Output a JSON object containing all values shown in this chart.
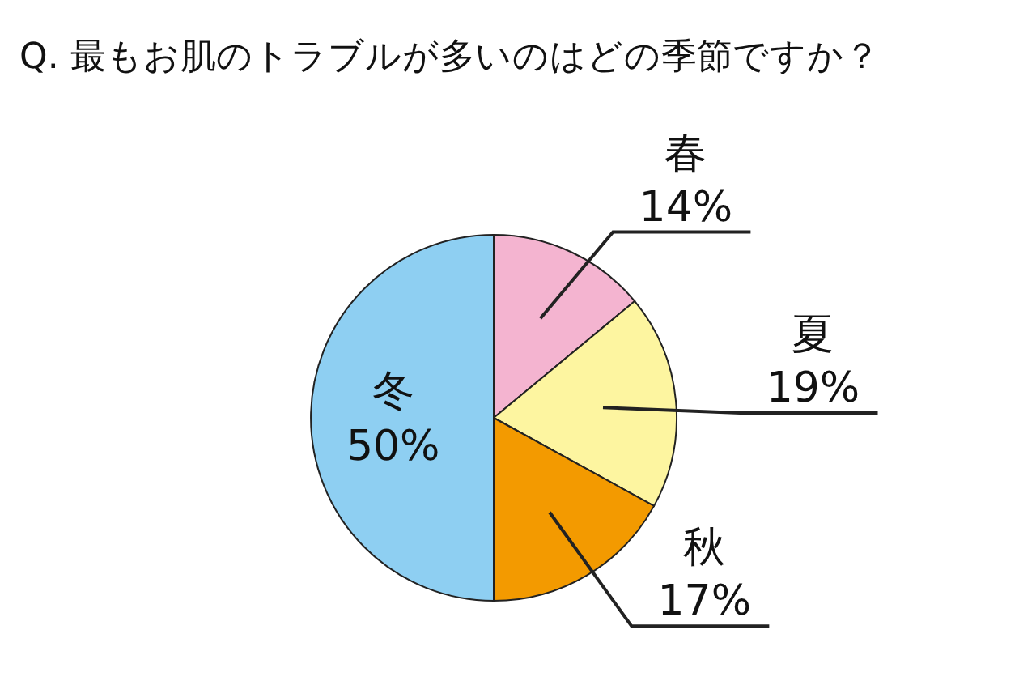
{
  "chart_data": {
    "type": "pie",
    "title": "Q. 最もお肌のトラブルが多いのはどの季節ですか？",
    "categories": [
      "春",
      "夏",
      "秋",
      "冬"
    ],
    "values": [
      14,
      19,
      17,
      50
    ],
    "colors": [
      "#f4b4d0",
      "#fdf5a0",
      "#f39a00",
      "#8ecff2"
    ],
    "value_labels": [
      "14%",
      "19%",
      "17%",
      "50%"
    ]
  }
}
